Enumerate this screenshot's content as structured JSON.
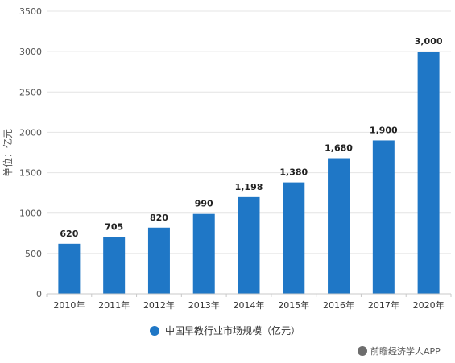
{
  "chart_data": {
    "type": "bar",
    "categories": [
      "2010年",
      "2011年",
      "2012年",
      "2013年",
      "2014年",
      "2015年",
      "2016年",
      "2017年",
      "2020年"
    ],
    "values": [
      620,
      705,
      820,
      990,
      1198,
      1380,
      1680,
      1900,
      3000
    ],
    "data_labels": [
      "620",
      "705",
      "820",
      "990",
      "1,198",
      "1,380",
      "1,680",
      "1,900",
      "3,000"
    ],
    "ylabel": "单位：亿元",
    "ylim": [
      0,
      3500
    ],
    "yticks": [
      0,
      500,
      1000,
      1500,
      2000,
      2500,
      3000,
      3500
    ],
    "grid": true,
    "legend_position": "bottom",
    "series": [
      {
        "name": "中国早教行业市场规模（亿元）",
        "color": "#1f77c6"
      }
    ]
  },
  "watermark_text": "前瞻经济学人APP"
}
